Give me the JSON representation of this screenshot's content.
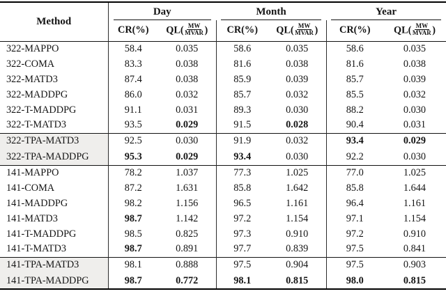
{
  "table": {
    "header": {
      "method": "Method",
      "groups": [
        "Day",
        "Month",
        "Year"
      ],
      "sub": {
        "cr": "CR(%)",
        "ql_prefix": "QL(",
        "ql_num": "MW",
        "ql_den": "MVAR",
        "ql_suffix": ")"
      }
    },
    "colors": {
      "highlight": "#efeeec",
      "rule": "#111111"
    },
    "groups": [
      {
        "highlight": false,
        "rows": [
          {
            "method": "322-MAPPO",
            "values": [
              "58.4",
              "0.035",
              "58.6",
              "0.035",
              "58.6",
              "0.035"
            ],
            "bold": [
              false,
              false,
              false,
              false,
              false,
              false
            ]
          },
          {
            "method": "322-COMA",
            "values": [
              "83.3",
              "0.038",
              "81.6",
              "0.038",
              "81.6",
              "0.038"
            ],
            "bold": [
              false,
              false,
              false,
              false,
              false,
              false
            ]
          },
          {
            "method": "322-MATD3",
            "values": [
              "87.4",
              "0.038",
              "85.9",
              "0.039",
              "85.7",
              "0.039"
            ],
            "bold": [
              false,
              false,
              false,
              false,
              false,
              false
            ]
          },
          {
            "method": "322-MADDPG",
            "values": [
              "86.0",
              "0.032",
              "85.7",
              "0.032",
              "85.5",
              "0.032"
            ],
            "bold": [
              false,
              false,
              false,
              false,
              false,
              false
            ]
          },
          {
            "method": "322-T-MADDPG",
            "values": [
              "91.1",
              "0.031",
              "89.3",
              "0.030",
              "88.2",
              "0.030"
            ],
            "bold": [
              false,
              false,
              false,
              false,
              false,
              false
            ]
          },
          {
            "method": "322-T-MATD3",
            "values": [
              "93.5",
              "0.029",
              "91.5",
              "0.028",
              "90.4",
              "0.031"
            ],
            "bold": [
              false,
              true,
              false,
              true,
              false,
              false
            ]
          }
        ]
      },
      {
        "highlight": true,
        "rows": [
          {
            "method": "322-TPA-MATD3",
            "values": [
              "92.5",
              "0.030",
              "91.9",
              "0.032",
              "93.4",
              "0.029"
            ],
            "bold": [
              false,
              false,
              false,
              false,
              true,
              true
            ]
          },
          {
            "method": "322-TPA-MADDPG",
            "values": [
              "95.3",
              "0.029",
              "93.4",
              "0.030",
              "92.2",
              "0.030"
            ],
            "bold": [
              true,
              true,
              true,
              false,
              false,
              false
            ]
          }
        ]
      },
      {
        "highlight": false,
        "rows": [
          {
            "method": "141-MAPPO",
            "values": [
              "78.2",
              "1.037",
              "77.3",
              "1.025",
              "77.0",
              "1.025"
            ],
            "bold": [
              false,
              false,
              false,
              false,
              false,
              false
            ]
          },
          {
            "method": "141-COMA",
            "values": [
              "87.2",
              "1.631",
              "85.8",
              "1.642",
              "85.8",
              "1.644"
            ],
            "bold": [
              false,
              false,
              false,
              false,
              false,
              false
            ]
          },
          {
            "method": "141-MADDPG",
            "values": [
              "98.2",
              "1.156",
              "96.5",
              "1.161",
              "96.4",
              "1.161"
            ],
            "bold": [
              false,
              false,
              false,
              false,
              false,
              false
            ]
          },
          {
            "method": "141-MATD3",
            "values": [
              "98.7",
              "1.142",
              "97.2",
              "1.154",
              "97.1",
              "1.154"
            ],
            "bold": [
              true,
              false,
              false,
              false,
              false,
              false
            ]
          },
          {
            "method": "141-T-MADDPG",
            "values": [
              "98.5",
              "0.825",
              "97.3",
              "0.910",
              "97.2",
              "0.910"
            ],
            "bold": [
              false,
              false,
              false,
              false,
              false,
              false
            ]
          },
          {
            "method": "141-T-MATD3",
            "values": [
              "98.7",
              "0.891",
              "97.7",
              "0.839",
              "97.5",
              "0.841"
            ],
            "bold": [
              true,
              false,
              false,
              false,
              false,
              false
            ]
          }
        ]
      },
      {
        "highlight": true,
        "rows": [
          {
            "method": "141-TPA-MATD3",
            "values": [
              "98.1",
              "0.888",
              "97.5",
              "0.904",
              "97.5",
              "0.903"
            ],
            "bold": [
              false,
              false,
              false,
              false,
              false,
              false
            ]
          },
          {
            "method": "141-TPA-MADDPG",
            "values": [
              "98.7",
              "0.772",
              "98.1",
              "0.815",
              "98.0",
              "0.815"
            ],
            "bold": [
              true,
              true,
              true,
              true,
              true,
              true
            ]
          }
        ]
      }
    ]
  }
}
